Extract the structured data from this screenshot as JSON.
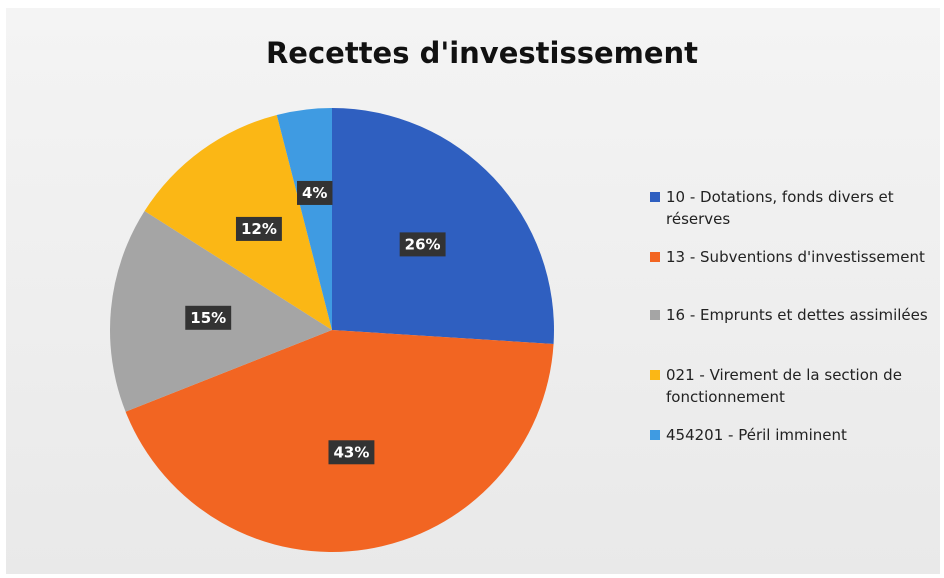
{
  "chart_data": {
    "type": "pie",
    "title": "Recettes d'investissement",
    "categories": [
      "10 - Dotations, fonds divers et réserves",
      "13 - Subventions d'investissement",
      "16 - Emprunts et dettes assimilées",
      "021 - Virement de la section de fonctionnement",
      "454201 - Péril imminent"
    ],
    "values": [
      26,
      43,
      15,
      12,
      4
    ],
    "value_labels": [
      "26%",
      "43%",
      "15%",
      "12%",
      "4%"
    ],
    "colors": [
      "#2f5fc0",
      "#f26522",
      "#a5a5a5",
      "#fbb715",
      "#3f9be2"
    ]
  }
}
